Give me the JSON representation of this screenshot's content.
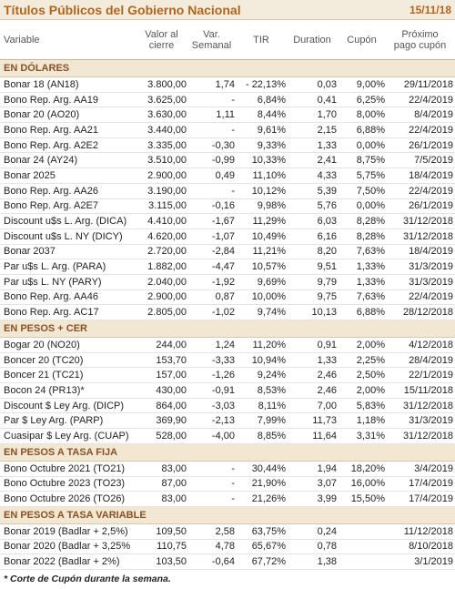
{
  "header": {
    "title": "Títulos Públicos del Gobierno Nacional",
    "date": "15/11/18"
  },
  "columns": [
    "Variable",
    "Valor al cierre",
    "Var. Semanal",
    "TIR",
    "Duration",
    "Cupón",
    "Próximo pago cupón"
  ],
  "sections": [
    {
      "title": "EN DÓLARES",
      "rows": [
        [
          "Bonar 18 (AN18)",
          "3.800,00",
          "1,74",
          "- 22,13%",
          "0,03",
          "9,00%",
          "29/11/2018"
        ],
        [
          "Bono Rep. Arg. AA19",
          "3.625,00",
          "-",
          "6,84%",
          "0,41",
          "6,25%",
          "22/4/2019"
        ],
        [
          "Bonar 20 (AO20)",
          "3.630,00",
          "1,11",
          "8,44%",
          "1,70",
          "8,00%",
          "8/4/2019"
        ],
        [
          "Bono Rep. Arg. AA21",
          "3.440,00",
          "-",
          "9,61%",
          "2,15",
          "6,88%",
          "22/4/2019"
        ],
        [
          "Bono Rep. Arg. A2E2",
          "3.335,00",
          "-0,30",
          "9,33%",
          "1,33",
          "0,00%",
          "26/1/2019"
        ],
        [
          "Bonar 24 (AY24)",
          "3.510,00",
          "-0,99",
          "10,33%",
          "2,41",
          "8,75%",
          "7/5/2019"
        ],
        [
          "Bonar 2025",
          "2.900,00",
          "0,49",
          "11,10%",
          "4,33",
          "5,75%",
          "18/4/2019"
        ],
        [
          "Bono Rep. Arg. AA26",
          "3.190,00",
          "-",
          "10,12%",
          "5,39",
          "7,50%",
          "22/4/2019"
        ],
        [
          "Bono Rep. Arg. A2E7",
          "3.115,00",
          "-0,16",
          "9,98%",
          "5,76",
          "0,00%",
          "26/1/2019"
        ],
        [
          "Discount u$s L. Arg. (DICA)",
          "4.410,00",
          "-1,67",
          "11,29%",
          "6,03",
          "8,28%",
          "31/12/2018"
        ],
        [
          "Discount u$s L. NY (DICY)",
          "4.620,00",
          "-1,07",
          "10,49%",
          "6,16",
          "8,28%",
          "31/12/2018"
        ],
        [
          "Bonar 2037",
          "2.720,00",
          "-2,84",
          "11,21%",
          "8,20",
          "7,63%",
          "18/4/2019"
        ],
        [
          "Par u$s L. Arg. (PARA)",
          "1.882,00",
          "-4,47",
          "10,57%",
          "9,51",
          "1,33%",
          "31/3/2019"
        ],
        [
          "Par u$s L. NY (PARY)",
          "2.040,00",
          "-1,92",
          "9,69%",
          "9,79",
          "1,33%",
          "31/3/2019"
        ],
        [
          "Bono Rep. Arg. AA46",
          "2.900,00",
          "0,87",
          "10,00%",
          "9,75",
          "7,63%",
          "22/4/2019"
        ],
        [
          "Bono Rep. Arg. AC17",
          "2.805,00",
          "-1,02",
          "9,74%",
          "10,13",
          "6,88%",
          "28/12/2018"
        ]
      ]
    },
    {
      "title": "EN PESOS + CER",
      "rows": [
        [
          "Bogar 20 (NO20)",
          "244,00",
          "1,24",
          "11,20%",
          "0,91",
          "2,00%",
          "4/12/2018"
        ],
        [
          "Boncer 20 (TC20)",
          "153,70",
          "-3,33",
          "10,94%",
          "1,33",
          "2,25%",
          "28/4/2019"
        ],
        [
          "Boncer 21 (TC21)",
          "157,00",
          "-1,26",
          "9,24%",
          "2,46",
          "2,50%",
          "22/1/2019"
        ],
        [
          "Bocon 24 (PR13)*",
          "430,00",
          "-0,91",
          "8,53%",
          "2,46",
          "2,00%",
          "15/11/2018"
        ],
        [
          "Discount $ Ley Arg. (DICP)",
          "864,00",
          "-3,03",
          "8,11%",
          "7,00",
          "5,83%",
          "31/12/2018"
        ],
        [
          "Par $ Ley Arg. (PARP)",
          "369,90",
          "-2,13",
          "7,99%",
          "11,73",
          "1,18%",
          "31/3/2019"
        ],
        [
          "Cuasipar $ Ley Arg. (CUAP)",
          "528,00",
          "-4,00",
          "8,85%",
          "11,64",
          "3,31%",
          "31/12/2018"
        ]
      ]
    },
    {
      "title": "EN PESOS A TASA FIJA",
      "rows": [
        [
          "Bono Octubre 2021 (TO21)",
          "83,00",
          "-",
          "30,44%",
          "1,94",
          "18,20%",
          "3/4/2019"
        ],
        [
          "Bono Octubre 2023 (TO23)",
          "87,00",
          "-",
          "21,90%",
          "3,07",
          "16,00%",
          "17/4/2019"
        ],
        [
          "Bono Octubre 2026 (TO26)",
          "83,00",
          "-",
          "21,26%",
          "3,99",
          "15,50%",
          "17/4/2019"
        ]
      ]
    },
    {
      "title": "EN PESOS A TASA VARIABLE",
      "rows": [
        [
          "Bonar 2019 (Badlar + 2,5%)",
          "109,50",
          "2,58",
          "63,75%",
          "0,24",
          null,
          "11/12/2018"
        ],
        [
          "Bonar 2020 (Badlar + 3,25%",
          "110,75",
          "4,78",
          "65,67%",
          "0,78",
          null,
          "8/10/2018"
        ],
        [
          "Bonar 2022 (Badlar + 2%)",
          "103,50",
          "-0,64",
          "67,72%",
          "1,38",
          null,
          "3/1/2019"
        ]
      ]
    }
  ],
  "footnote": "* Corte de Cupón durante la semana."
}
